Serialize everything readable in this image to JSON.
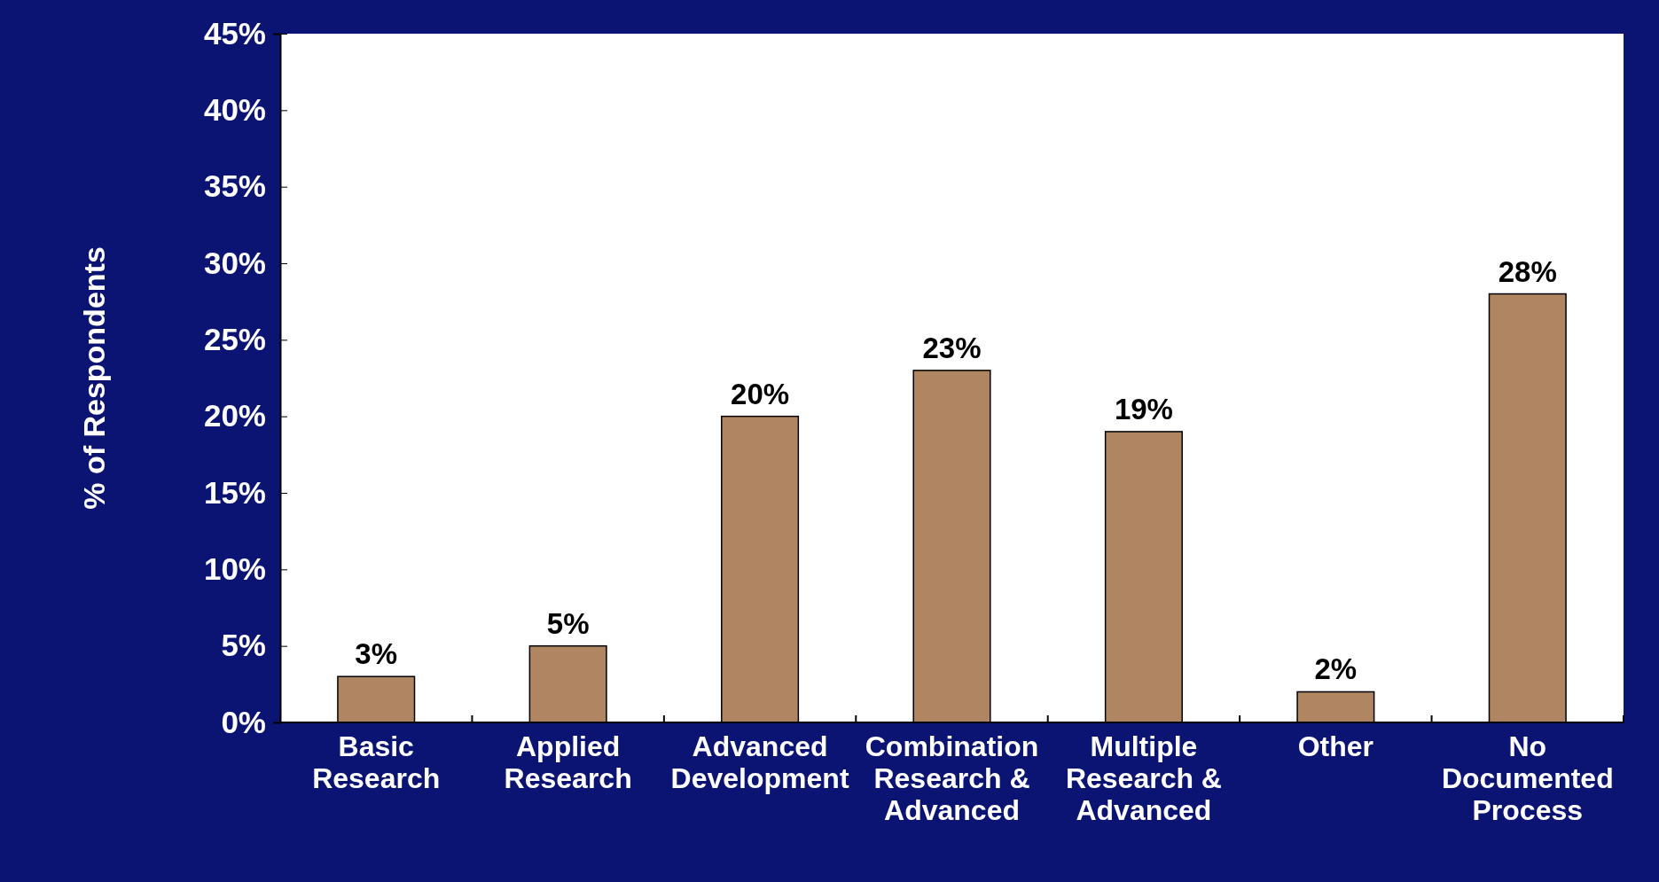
{
  "chart_data": {
    "type": "bar",
    "ylabel": "% of Respondents",
    "categories": [
      "Basic Research",
      "Applied Research",
      "Advanced Development",
      "Combination Research & Advanced",
      "Multiple Research & Advanced",
      "Other",
      "No Documented Process"
    ],
    "values": [
      3,
      5,
      20,
      23,
      19,
      2,
      28
    ],
    "color": "#b08562",
    "ylim": [
      0,
      45
    ],
    "yticks": [
      {
        "value": 0,
        "label": "0%"
      },
      {
        "value": 5,
        "label": "5%"
      },
      {
        "value": 10,
        "label": "10%"
      },
      {
        "value": 15,
        "label": "15%"
      },
      {
        "value": 20,
        "label": "20%"
      },
      {
        "value": 25,
        "label": "25%"
      },
      {
        "value": 30,
        "label": "30%"
      },
      {
        "value": 35,
        "label": "35%"
      },
      {
        "value": 40,
        "label": "40%"
      },
      {
        "value": 45,
        "label": "45%"
      }
    ],
    "value_labels": [
      "3%",
      "5%",
      "20%",
      "23%",
      "19%",
      "2%",
      "28%"
    ],
    "grid": false
  }
}
